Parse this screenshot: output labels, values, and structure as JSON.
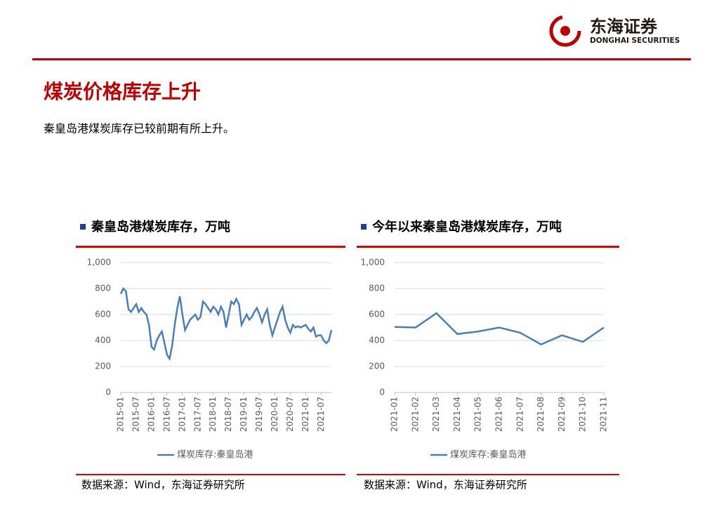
{
  "header": {
    "logo_cn": "东海证券",
    "logo_en": "DONGHAI SECURITIES",
    "title": "煤炭价格库存上升",
    "subtitle": "秦皇岛港煤炭库存已较前期有所上升。"
  },
  "chart_data": [
    {
      "type": "line",
      "title": "秦皇岛港煤炭库存，万吨",
      "source": "数据来源：Wind，东海证券研究所",
      "categories": [
        "2015-01",
        null,
        null,
        null,
        null,
        null,
        "2015-07",
        null,
        null,
        null,
        null,
        null,
        "2016-01",
        null,
        null,
        null,
        null,
        null,
        "2016-07",
        null,
        null,
        null,
        null,
        null,
        "2017-01",
        null,
        null,
        null,
        null,
        null,
        "2017-07",
        null,
        null,
        null,
        null,
        null,
        "2018-01",
        null,
        null,
        null,
        null,
        null,
        "2018-07",
        null,
        null,
        null,
        null,
        null,
        "2019-01",
        null,
        null,
        null,
        null,
        null,
        "2019-07",
        null,
        null,
        null,
        null,
        null,
        "2020-01",
        null,
        null,
        null,
        null,
        null,
        "2020-07",
        null,
        null,
        null,
        null,
        null,
        "2021-01",
        null,
        null,
        null,
        null,
        null,
        "2021-07",
        null,
        null,
        null,
        null
      ],
      "series": [
        {
          "name": "煤炭库存:秦皇岛港",
          "color": "#4a7ebb",
          "values": [
            760,
            800,
            780,
            640,
            620,
            650,
            680,
            620,
            650,
            620,
            600,
            520,
            350,
            330,
            400,
            440,
            470,
            380,
            290,
            260,
            360,
            520,
            650,
            740,
            600,
            480,
            520,
            560,
            580,
            600,
            560,
            580,
            700,
            680,
            650,
            620,
            660,
            640,
            600,
            660,
            620,
            500,
            600,
            700,
            680,
            720,
            680,
            520,
            560,
            600,
            560,
            580,
            620,
            650,
            600,
            540,
            600,
            640,
            520,
            440,
            500,
            560,
            620,
            660,
            560,
            500,
            460,
            520,
            500,
            510,
            500,
            510,
            520,
            490,
            470,
            500,
            430,
            440,
            440,
            400,
            380,
            400,
            480
          ]
        }
      ],
      "ylim": [
        0,
        1000
      ],
      "yticks": [
        0,
        200,
        400,
        600,
        800,
        {
          "value": 1000,
          "label": "1,000"
        }
      ],
      "grid": true
    },
    {
      "type": "line",
      "title": "今年以来秦皇岛港煤炭库存，万吨",
      "source": "数据来源：Wind，东海证券研究所",
      "categories": [
        "2021-01",
        "2021-02",
        "2021-03",
        "2021-04",
        "2021-05",
        "2021-06",
        "2021-07",
        "2021-08",
        "2021-09",
        "2021-10",
        "2021-11"
      ],
      "series": [
        {
          "name": "煤炭库存:秦皇岛港",
          "color": "#4a7ebb",
          "values": [
            505,
            500,
            610,
            450,
            470,
            500,
            460,
            370,
            440,
            390,
            500
          ]
        }
      ],
      "ylim": [
        0,
        1000
      ],
      "yticks": [
        0,
        200,
        400,
        600,
        800,
        {
          "value": 1000,
          "label": "1,000"
        }
      ],
      "grid": true
    }
  ]
}
